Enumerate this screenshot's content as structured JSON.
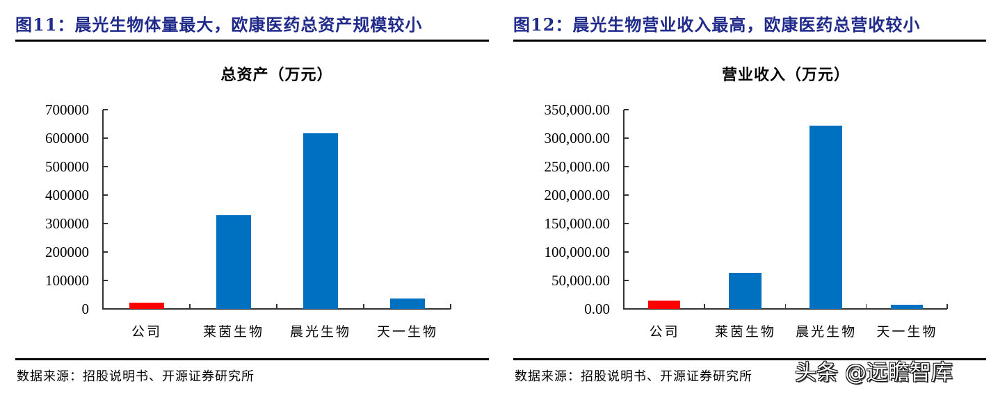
{
  "left": {
    "figure_title": "图11：晨光生物体量最大，欧康医药总资产规模较小",
    "source": "数据来源：招股说明书、开源证券研究所"
  },
  "right": {
    "figure_title": "图12：晨光生物营业收入最高，欧康医药总营收较小",
    "source": "数据来源：招股说明书、开源证券研究所"
  },
  "watermark": "头条 @远瞻智库",
  "colors": {
    "highlight": "#ff0000",
    "bar": "#0070c0",
    "title": "#1f2a8a"
  },
  "chart_data": [
    {
      "type": "bar",
      "title": "总资产（万元）",
      "xlabel": "",
      "ylabel": "",
      "categories": [
        "公司",
        "莱茵生物",
        "晨光生物",
        "天一生物"
      ],
      "values": [
        22000,
        330000,
        617000,
        37000
      ],
      "bar_colors": [
        "#ff0000",
        "#0070c0",
        "#0070c0",
        "#0070c0"
      ],
      "ylim": [
        0,
        700000
      ],
      "yticks": [
        "0",
        "100000",
        "200000",
        "300000",
        "400000",
        "500000",
        "600000",
        "700000"
      ],
      "grid": false,
      "legend": null
    },
    {
      "type": "bar",
      "title": "营业收入（万元）",
      "xlabel": "",
      "ylabel": "",
      "categories": [
        "公司",
        "莱茵生物",
        "晨光生物",
        "天一生物"
      ],
      "values": [
        15000,
        63000,
        322000,
        7500
      ],
      "bar_colors": [
        "#ff0000",
        "#0070c0",
        "#0070c0",
        "#0070c0"
      ],
      "ylim": [
        0,
        350000
      ],
      "yticks": [
        "0.00",
        "50,000.00",
        "100,000.00",
        "150,000.00",
        "200,000.00",
        "250,000.00",
        "300,000.00",
        "350,000.00"
      ],
      "grid": false,
      "legend": null
    }
  ]
}
